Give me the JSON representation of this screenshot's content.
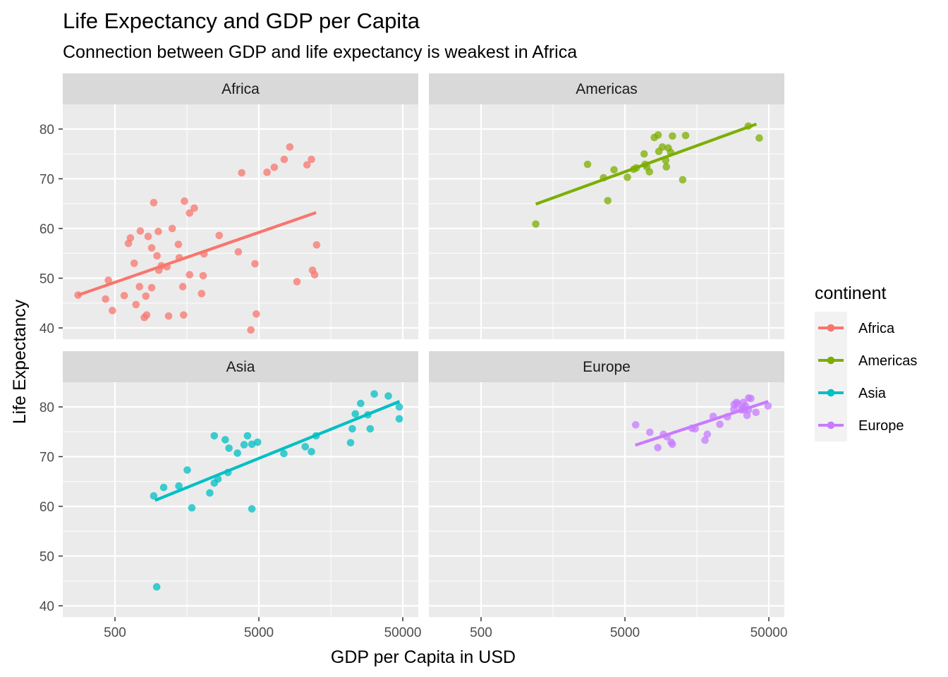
{
  "chart_data": {
    "type": "scatter",
    "title": "Life Expectancy and GDP per Capita",
    "subtitle": "Connection between GDP and life expectancy is weakest in Africa",
    "xlabel": "GDP per Capita in USD",
    "ylabel": "Life Expectancy",
    "x_scale": "log10",
    "xlim": [
      180,
      60000
    ],
    "ylim": [
      38,
      90
    ],
    "x_ticks": [
      500,
      5000,
      50000
    ],
    "y_ticks": [
      40,
      50,
      60,
      70,
      80
    ],
    "grid": true,
    "legend": {
      "title": "continent",
      "placement": "right"
    },
    "panels": [
      {
        "name": "Africa",
        "color": "#F8766D",
        "trend": [
          [
            277,
            46.6
          ],
          [
            12500,
            63.2
          ]
        ],
        "points": [
          [
            277,
            46.6
          ],
          [
            430,
            45.8
          ],
          [
            450,
            49.6
          ],
          [
            480,
            43.5
          ],
          [
            580,
            46.5
          ],
          [
            620,
            57.0
          ],
          [
            640,
            58.1
          ],
          [
            680,
            53.0
          ],
          [
            700,
            44.7
          ],
          [
            740,
            48.3
          ],
          [
            750,
            59.5
          ],
          [
            800,
            42.1
          ],
          [
            820,
            46.4
          ],
          [
            830,
            42.6
          ],
          [
            850,
            58.4
          ],
          [
            900,
            48.1
          ],
          [
            900,
            56.1
          ],
          [
            930,
            65.2
          ],
          [
            980,
            54.5
          ],
          [
            1000,
            59.4
          ],
          [
            1010,
            51.6
          ],
          [
            1050,
            52.5
          ],
          [
            1150,
            52.3
          ],
          [
            1180,
            42.4
          ],
          [
            1250,
            60.0
          ],
          [
            1380,
            56.8
          ],
          [
            1400,
            54.1
          ],
          [
            1480,
            48.3
          ],
          [
            1500,
            42.6
          ],
          [
            1520,
            65.5
          ],
          [
            1650,
            50.7
          ],
          [
            1650,
            63.1
          ],
          [
            1780,
            64.1
          ],
          [
            2000,
            46.9
          ],
          [
            2050,
            50.5
          ],
          [
            2080,
            54.9
          ],
          [
            2650,
            58.6
          ],
          [
            3600,
            55.3
          ],
          [
            3800,
            71.2
          ],
          [
            4400,
            39.6
          ],
          [
            4700,
            52.9
          ],
          [
            4800,
            42.8
          ],
          [
            5700,
            71.3
          ],
          [
            6400,
            72.3
          ],
          [
            7500,
            73.9
          ],
          [
            8200,
            76.4
          ],
          [
            9200,
            49.3
          ],
          [
            10800,
            72.8
          ],
          [
            11600,
            73.9
          ],
          [
            11800,
            51.6
          ],
          [
            12200,
            50.7
          ],
          [
            12600,
            56.7
          ]
        ]
      },
      {
        "name": "Americas",
        "color": "#7CAE00",
        "trend": [
          [
            1200,
            64.9
          ],
          [
            41000,
            81.0
          ]
        ],
        "points": [
          [
            1200,
            60.9
          ],
          [
            2750,
            72.9
          ],
          [
            3550,
            70.2
          ],
          [
            3800,
            65.6
          ],
          [
            4200,
            71.8
          ],
          [
            5200,
            70.3
          ],
          [
            5750,
            71.9
          ],
          [
            6000,
            72.2
          ],
          [
            6800,
            75.0
          ],
          [
            6900,
            72.9
          ],
          [
            7100,
            72.4
          ],
          [
            7400,
            71.4
          ],
          [
            8000,
            78.3
          ],
          [
            8500,
            78.8
          ],
          [
            8600,
            75.5
          ],
          [
            9100,
            76.4
          ],
          [
            9600,
            73.7
          ],
          [
            9700,
            72.4
          ],
          [
            10000,
            76.2
          ],
          [
            10400,
            75.3
          ],
          [
            10700,
            78.6
          ],
          [
            12600,
            69.8
          ],
          [
            13200,
            78.7
          ],
          [
            36000,
            80.6
          ],
          [
            42900,
            78.2
          ]
        ]
      },
      {
        "name": "Asia",
        "color": "#00BFC4",
        "trend": [
          [
            950,
            61.2
          ],
          [
            47500,
            81.1
          ]
        ],
        "points": [
          [
            930,
            62.1
          ],
          [
            975,
            43.8
          ],
          [
            1090,
            63.8
          ],
          [
            1390,
            64.1
          ],
          [
            1590,
            67.3
          ],
          [
            1710,
            59.7
          ],
          [
            2280,
            62.7
          ],
          [
            2450,
            74.2
          ],
          [
            2450,
            64.7
          ],
          [
            2600,
            65.5
          ],
          [
            2920,
            73.4
          ],
          [
            3050,
            66.8
          ],
          [
            3100,
            71.7
          ],
          [
            3550,
            70.7
          ],
          [
            3950,
            72.4
          ],
          [
            4170,
            74.2
          ],
          [
            4470,
            72.5
          ],
          [
            4470,
            59.5
          ],
          [
            4900,
            72.9
          ],
          [
            7460,
            70.6
          ],
          [
            10500,
            72.0
          ],
          [
            11600,
            71.0
          ],
          [
            12500,
            74.2
          ],
          [
            21700,
            72.8
          ],
          [
            22300,
            75.6
          ],
          [
            23400,
            78.6
          ],
          [
            25500,
            80.7
          ],
          [
            28600,
            78.4
          ],
          [
            29700,
            75.6
          ],
          [
            31700,
            82.6
          ],
          [
            39700,
            82.2
          ],
          [
            47300,
            80.0
          ],
          [
            47300,
            77.6
          ]
        ]
      },
      {
        "name": "Europe",
        "color": "#C77CFF",
        "trend": [
          [
            5900,
            72.3
          ],
          [
            49500,
            81.1
          ]
        ],
        "points": [
          [
            5937,
            76.4
          ],
          [
            7446,
            74.9
          ],
          [
            8458,
            71.8
          ],
          [
            9254,
            74.5
          ],
          [
            9787,
            74.0
          ],
          [
            10461,
            72.9
          ],
          [
            10680,
            72.5
          ],
          [
            14619,
            75.7
          ],
          [
            15389,
            75.6
          ],
          [
            18009,
            73.3
          ],
          [
            18678,
            74.5
          ],
          [
            20510,
            78.1
          ],
          [
            22833,
            76.5
          ],
          [
            25768,
            78.0
          ],
          [
            28570,
            79.5
          ],
          [
            28718,
            80.5
          ],
          [
            29796,
            80.9
          ],
          [
            30470,
            80.6
          ],
          [
            32170,
            79.4
          ],
          [
            33203,
            79.8
          ],
          [
            33207,
            80.9
          ],
          [
            33692,
            79.4
          ],
          [
            34435,
            80.2
          ],
          [
            35278,
            78.3
          ],
          [
            36126,
            79.4
          ],
          [
            36181,
            81.8
          ],
          [
            37506,
            81.7
          ],
          [
            40676,
            78.9
          ],
          [
            49357,
            80.2
          ]
        ]
      }
    ]
  }
}
